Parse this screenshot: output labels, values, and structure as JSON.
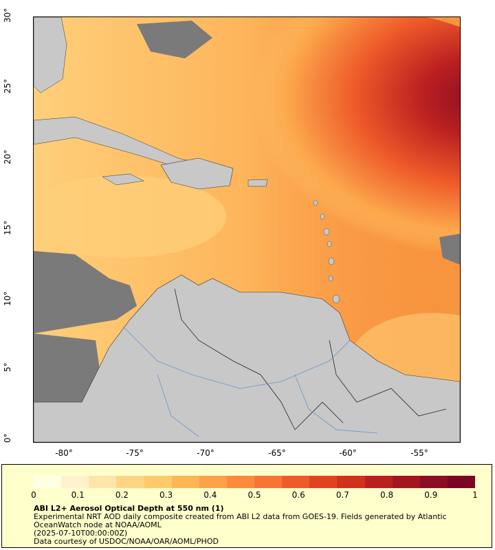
{
  "map": {
    "lon_range": [
      -82,
      -52
    ],
    "lat_range": [
      0,
      30
    ],
    "colors": {
      "land": "#c8c8c8",
      "nodata": "#7a7a7a",
      "border": "#333333",
      "river": "#6b93c8"
    }
  },
  "y_ticks": [
    "0°",
    "5°",
    "10°",
    "15°",
    "20°",
    "25°",
    "30°"
  ],
  "x_ticks": [
    "-80°",
    "-75°",
    "-70°",
    "-65°",
    "-60°",
    "-55°"
  ],
  "colorbar": {
    "ticks": [
      "0",
      "0.1",
      "0.2",
      "0.3",
      "0.4",
      "0.5",
      "0.6",
      "0.7",
      "0.8",
      "0.9",
      "1"
    ],
    "colors": [
      "#ffffe6",
      "#fff2cc",
      "#ffe5a8",
      "#fed683",
      "#feca6a",
      "#feb655",
      "#fda24a",
      "#fc8b3e",
      "#f97434",
      "#ee5a29",
      "#e2431f",
      "#d0321c",
      "#bb2020",
      "#a4161f",
      "#8b0e24",
      "#7a0624"
    ]
  },
  "caption": {
    "title": "ABI L2+ Aerosol Optical Depth at 550 nm (1)",
    "description": "Experimental NRT AOD daily composite created from ABI L2 data from GOES-19. Fields generated by Atlantic OceanWatch node at NOAA/AOML",
    "time": "(2025-07-10T00:00:00Z)",
    "credit": "Data courtesy of USDOC/NOAA/OAR/AOML/PHOD"
  }
}
